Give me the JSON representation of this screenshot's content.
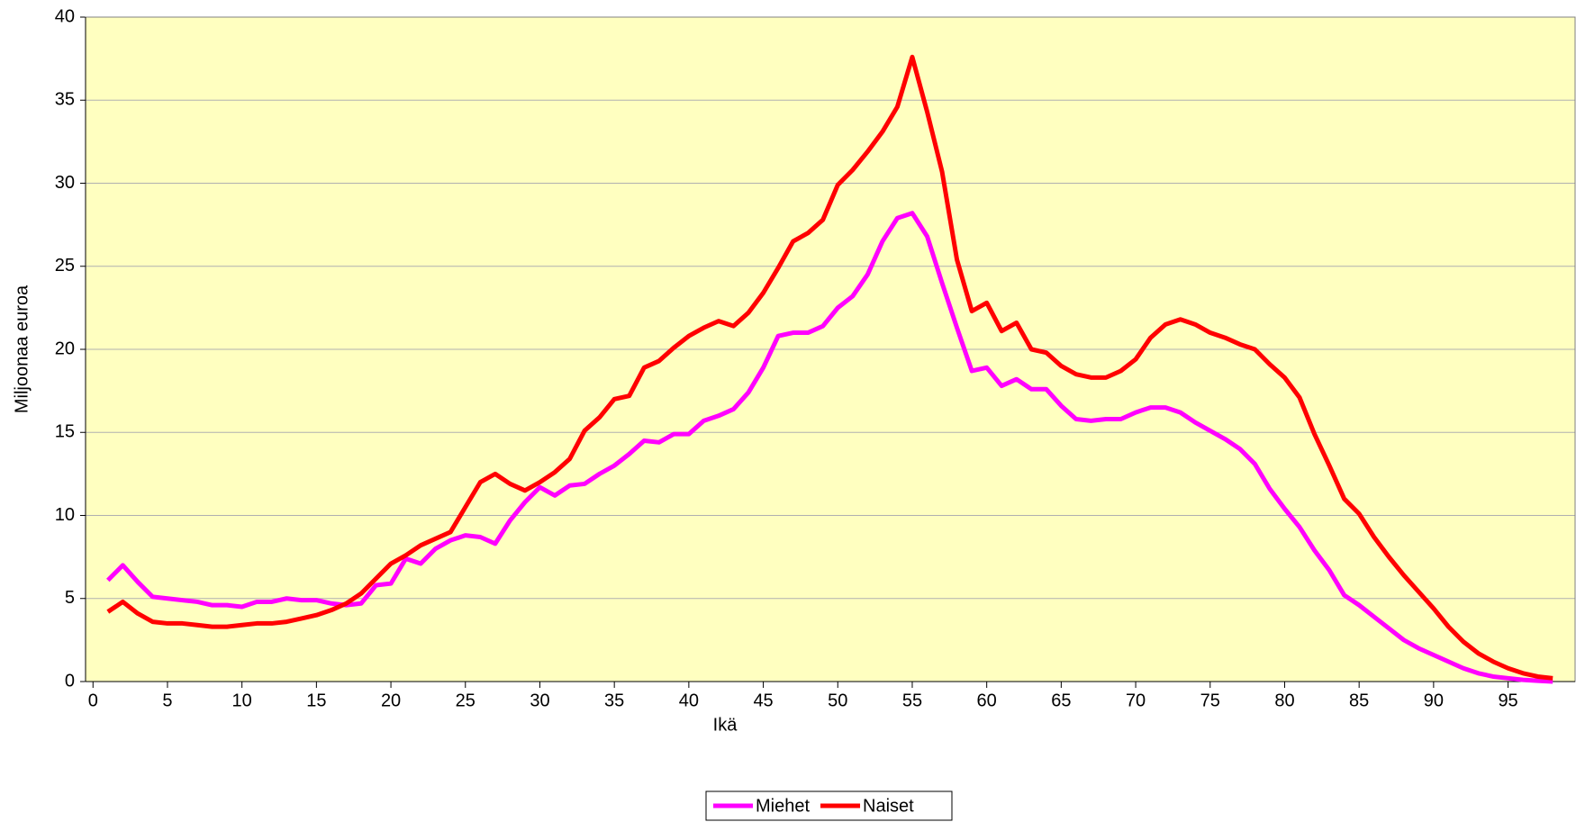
{
  "chart_data": {
    "type": "line",
    "x_label": "Ikä",
    "y_label": "Miljoonaa euroa",
    "x": [
      1,
      2,
      3,
      4,
      5,
      6,
      7,
      8,
      9,
      10,
      11,
      12,
      13,
      14,
      15,
      16,
      17,
      18,
      19,
      20,
      21,
      22,
      23,
      24,
      25,
      26,
      27,
      28,
      29,
      30,
      31,
      32,
      33,
      34,
      35,
      36,
      37,
      38,
      39,
      40,
      41,
      42,
      43,
      44,
      45,
      46,
      47,
      48,
      49,
      50,
      51,
      52,
      53,
      54,
      55,
      56,
      57,
      58,
      59,
      60,
      61,
      62,
      63,
      64,
      65,
      66,
      67,
      68,
      69,
      70,
      71,
      72,
      73,
      74,
      75,
      76,
      77,
      78,
      79,
      80,
      81,
      82,
      83,
      84,
      85,
      86,
      87,
      88,
      89,
      90,
      91,
      92,
      93,
      94,
      95,
      96,
      97,
      98
    ],
    "series": [
      {
        "name": "Miehet",
        "color": "#ff00ff",
        "values": [
          6.1,
          7.0,
          6.0,
          5.1,
          5.0,
          4.9,
          4.8,
          4.6,
          4.6,
          4.5,
          4.8,
          4.8,
          5.0,
          4.9,
          4.9,
          4.7,
          4.6,
          4.7,
          5.8,
          5.9,
          7.4,
          7.1,
          8.0,
          8.5,
          8.8,
          8.7,
          8.3,
          9.7,
          10.8,
          11.7,
          11.2,
          11.8,
          11.9,
          12.5,
          13.0,
          13.7,
          14.5,
          14.4,
          14.9,
          14.9,
          15.7,
          16.0,
          16.4,
          17.4,
          18.9,
          20.8,
          21.0,
          21.0,
          21.4,
          22.5,
          23.2,
          24.5,
          26.5,
          27.9,
          28.2,
          26.8,
          24.0,
          21.3,
          18.7,
          18.9,
          17.8,
          18.2,
          17.6,
          17.6,
          16.6,
          15.8,
          15.7,
          15.8,
          15.8,
          16.2,
          16.5,
          16.5,
          16.2,
          15.6,
          15.1,
          14.6,
          14.0,
          13.1,
          11.6,
          10.4,
          9.3,
          7.9,
          6.7,
          5.2,
          4.6,
          3.9,
          3.2,
          2.5,
          2.0,
          1.6,
          1.2,
          0.8,
          0.5,
          0.3,
          0.2,
          0.1,
          0.05,
          0.0
        ]
      },
      {
        "name": "Naiset",
        "color": "#ff0000",
        "values": [
          4.2,
          4.8,
          4.1,
          3.6,
          3.5,
          3.5,
          3.4,
          3.3,
          3.3,
          3.4,
          3.5,
          3.5,
          3.6,
          3.8,
          4.0,
          4.3,
          4.7,
          5.3,
          6.2,
          7.1,
          7.6,
          8.2,
          8.6,
          9.0,
          10.5,
          12.0,
          12.5,
          11.9,
          11.5,
          12.0,
          12.6,
          13.4,
          15.1,
          15.9,
          17.0,
          17.2,
          18.9,
          19.3,
          20.1,
          20.8,
          21.3,
          21.7,
          21.4,
          22.2,
          23.4,
          24.9,
          26.5,
          27.0,
          27.8,
          29.9,
          30.8,
          31.9,
          33.1,
          34.6,
          37.6,
          34.3,
          30.7,
          25.4,
          22.3,
          22.8,
          21.1,
          21.6,
          20.0,
          19.8,
          19.0,
          18.5,
          18.3,
          18.3,
          18.7,
          19.4,
          20.7,
          21.5,
          21.8,
          21.5,
          21.0,
          20.7,
          20.3,
          20.0,
          19.1,
          18.3,
          17.1,
          14.9,
          13.0,
          11.0,
          10.1,
          8.7,
          7.5,
          6.4,
          5.4,
          4.4,
          3.3,
          2.4,
          1.7,
          1.2,
          0.8,
          0.5,
          0.3,
          0.2
        ]
      }
    ],
    "xlim": [
      -0.5,
      99.5
    ],
    "xticks": [
      0,
      5,
      10,
      15,
      20,
      25,
      30,
      35,
      40,
      45,
      50,
      55,
      60,
      65,
      70,
      75,
      80,
      85,
      90,
      95
    ],
    "ylim": [
      0,
      40
    ],
    "yticks": [
      0,
      5,
      10,
      15,
      20,
      25,
      30,
      35,
      40
    ],
    "grid": true,
    "legend": "bottom",
    "plot_background": "#ffffc0"
  }
}
